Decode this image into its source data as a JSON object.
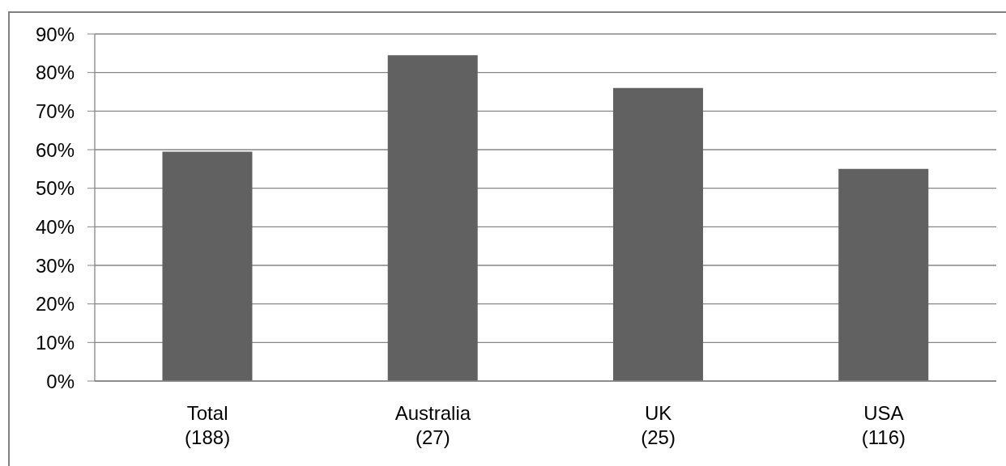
{
  "chart_data": {
    "type": "bar",
    "categories": [
      "Total\n(188)",
      "Australia\n(27)",
      "UK\n(25)",
      "USA\n(116)"
    ],
    "values": [
      59.5,
      84.5,
      76,
      55
    ],
    "color": "#616161",
    "ylim": [
      0,
      90
    ],
    "yticks": [
      {
        "value": 0,
        "label": "0%"
      },
      {
        "value": 10,
        "label": "10%"
      },
      {
        "value": 20,
        "label": "20%"
      },
      {
        "value": 30,
        "label": "30%"
      },
      {
        "value": 40,
        "label": "40%"
      },
      {
        "value": 50,
        "label": "50%"
      },
      {
        "value": 60,
        "label": "60%"
      },
      {
        "value": 70,
        "label": "70%"
      },
      {
        "value": 80,
        "label": "80%"
      },
      {
        "value": 90,
        "label": "90%"
      }
    ],
    "grid": "y"
  }
}
